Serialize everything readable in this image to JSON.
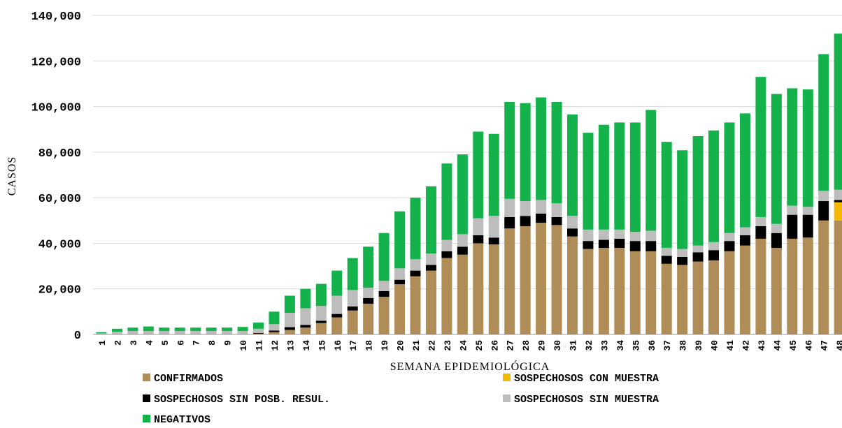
{
  "chart_data": {
    "type": "bar",
    "stacked": true,
    "title": "",
    "xlabel": "SEMANA EPIDEMIOLÓGICA",
    "ylabel": "CASOS",
    "ylim": [
      0,
      140000
    ],
    "yticks": [
      "0",
      "20,000",
      "40,000",
      "60,000",
      "80,000",
      "100,000",
      "120,000",
      "140,000"
    ],
    "grid": true,
    "legend_position": "bottom",
    "categories": [
      "1",
      "2",
      "3",
      "4",
      "5",
      "6",
      "7",
      "8",
      "9",
      "10",
      "11",
      "12",
      "13",
      "14",
      "15",
      "16",
      "17",
      "18",
      "19",
      "20",
      "21",
      "22",
      "23",
      "24",
      "25",
      "26",
      "27",
      "28",
      "29",
      "30",
      "31",
      "32",
      "33",
      "34",
      "35",
      "36",
      "37",
      "38",
      "39",
      "40",
      "41",
      "42",
      "43",
      "44",
      "45",
      "46",
      "47",
      "48"
    ],
    "series": [
      {
        "name": "CONFIRMADOS",
        "color": "#b08d57",
        "values": [
          0,
          0,
          0,
          0,
          0,
          0,
          0,
          0,
          0,
          0,
          300,
          1000,
          2000,
          3000,
          5000,
          7500,
          10500,
          13500,
          16500,
          22000,
          25500,
          28000,
          33500,
          35000,
          40000,
          39500,
          46500,
          47500,
          49000,
          48000,
          43000,
          37500,
          38000,
          38000,
          36500,
          36500,
          31000,
          30500,
          32000,
          32500,
          36500,
          39000,
          42000,
          38000,
          42000,
          42500,
          50000,
          50000
        ]
      },
      {
        "name": "SOSPECHOSOS SIN POSB. RESUL.",
        "color": "#000000",
        "values": [
          0,
          0,
          0,
          0,
          0,
          0,
          0,
          0,
          0,
          0,
          300,
          700,
          1200,
          1200,
          1000,
          1500,
          1800,
          2500,
          2500,
          2000,
          2500,
          2500,
          3000,
          3500,
          3500,
          3000,
          5000,
          4500,
          4000,
          3500,
          3500,
          3500,
          3500,
          4000,
          4500,
          4500,
          3500,
          3500,
          4000,
          4500,
          4500,
          4500,
          5500,
          6500,
          10500,
          10000,
          8500,
          1000
        ]
      },
      {
        "name": "SOSPECHOSOS CON MUESTRA",
        "color": "#f5b800",
        "values": [
          0,
          0,
          0,
          0,
          0,
          0,
          0,
          0,
          0,
          0,
          0,
          0,
          0,
          0,
          0,
          0,
          0,
          0,
          0,
          0,
          0,
          0,
          0,
          0,
          0,
          0,
          0,
          0,
          0,
          0,
          0,
          0,
          0,
          0,
          0,
          0,
          0,
          0,
          0,
          0,
          0,
          0,
          0,
          0,
          0,
          0,
          0,
          8000
        ]
      },
      {
        "name": "SOSPECHOSOS SIN MUESTRA",
        "color": "#bdbdbd",
        "values": [
          500,
          1200,
          1500,
          1500,
          1500,
          1500,
          1500,
          1500,
          1500,
          1500,
          1900,
          2800,
          6300,
          7300,
          6500,
          8000,
          7200,
          4500,
          4500,
          5000,
          5000,
          5000,
          5000,
          5500,
          7500,
          9500,
          8000,
          6500,
          6000,
          6000,
          5500,
          5000,
          4500,
          4000,
          4000,
          4500,
          3500,
          3500,
          3000,
          3500,
          3500,
          3500,
          4000,
          4000,
          4000,
          3500,
          4500,
          4500
        ]
      },
      {
        "name": "NEGATIVOS",
        "color": "#13b24b",
        "values": [
          500,
          1300,
          1500,
          2000,
          1500,
          1500,
          1500,
          1500,
          1500,
          1800,
          2700,
          5500,
          7500,
          8500,
          9700,
          11000,
          14000,
          18000,
          21000,
          25000,
          27000,
          29500,
          33500,
          35000,
          38000,
          36000,
          42500,
          43000,
          45000,
          44500,
          44500,
          42500,
          46000,
          47000,
          48000,
          53000,
          46500,
          43300,
          48000,
          49000,
          48500,
          50000,
          61500,
          57000,
          51500,
          51500,
          60000,
          68500
        ]
      }
    ]
  }
}
